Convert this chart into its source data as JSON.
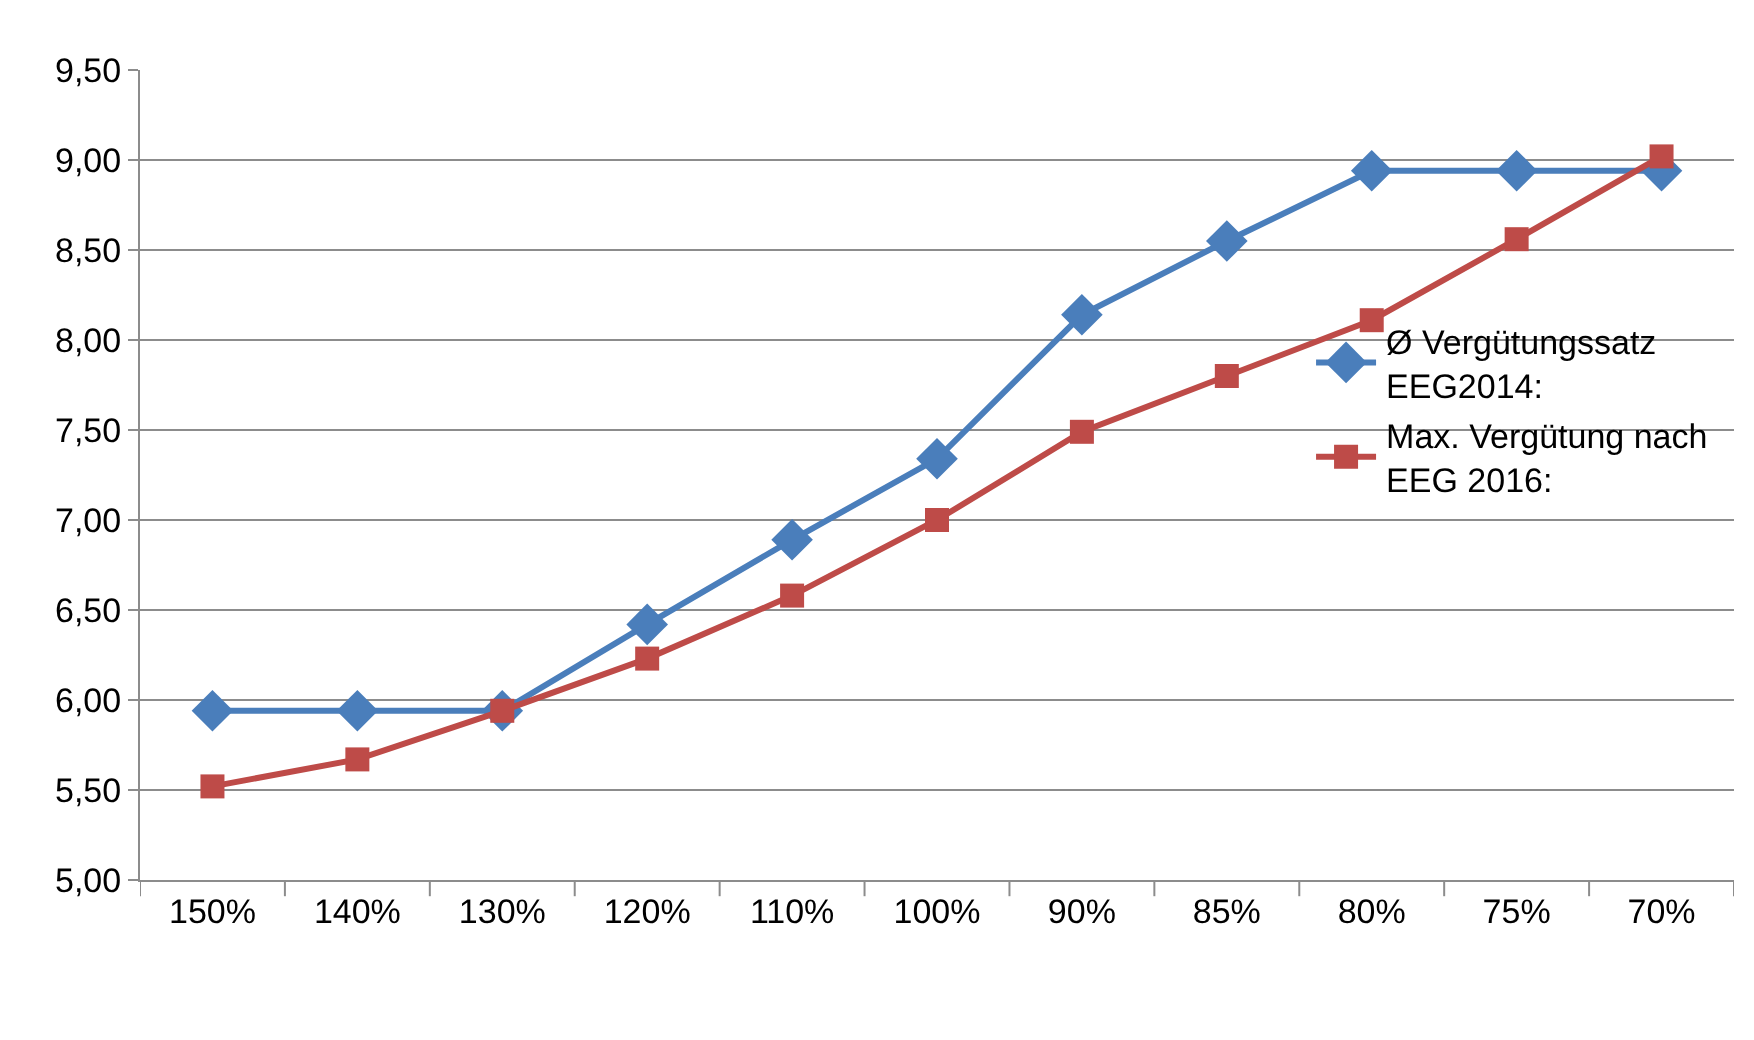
{
  "chart_data": {
    "type": "line",
    "categories": [
      "150%",
      "140%",
      "130%",
      "120%",
      "110%",
      "100%",
      "90%",
      "85%",
      "80%",
      "75%",
      "70%"
    ],
    "series": [
      {
        "name": "Ø Vergütungssatz EEG2014:",
        "color": "#4a7ebb",
        "marker": "diamond",
        "values": [
          5.94,
          5.94,
          5.94,
          6.42,
          6.89,
          7.34,
          8.14,
          8.55,
          8.94,
          8.94,
          8.94
        ]
      },
      {
        "name": "Max. Vergütung nach EEG 2016:",
        "color": "#be4b48",
        "marker": "square",
        "values": [
          5.52,
          5.67,
          5.94,
          6.23,
          6.58,
          7.0,
          7.49,
          7.8,
          8.11,
          8.56,
          9.02
        ]
      }
    ],
    "ylim": [
      5.0,
      9.5
    ],
    "yticks": [
      {
        "value": 5.0,
        "label": "5,00"
      },
      {
        "value": 5.5,
        "label": "5,50"
      },
      {
        "value": 6.0,
        "label": "6,00"
      },
      {
        "value": 6.5,
        "label": "6,50"
      },
      {
        "value": 7.0,
        "label": "7,00"
      },
      {
        "value": 7.5,
        "label": "7,50"
      },
      {
        "value": 8.0,
        "label": "8,00"
      },
      {
        "value": 8.5,
        "label": "8,50"
      },
      {
        "value": 9.0,
        "label": "9,00"
      },
      {
        "value": 9.5,
        "label": "9,50"
      }
    ],
    "grid": "y",
    "legend": "right",
    "line_style": "solid"
  }
}
